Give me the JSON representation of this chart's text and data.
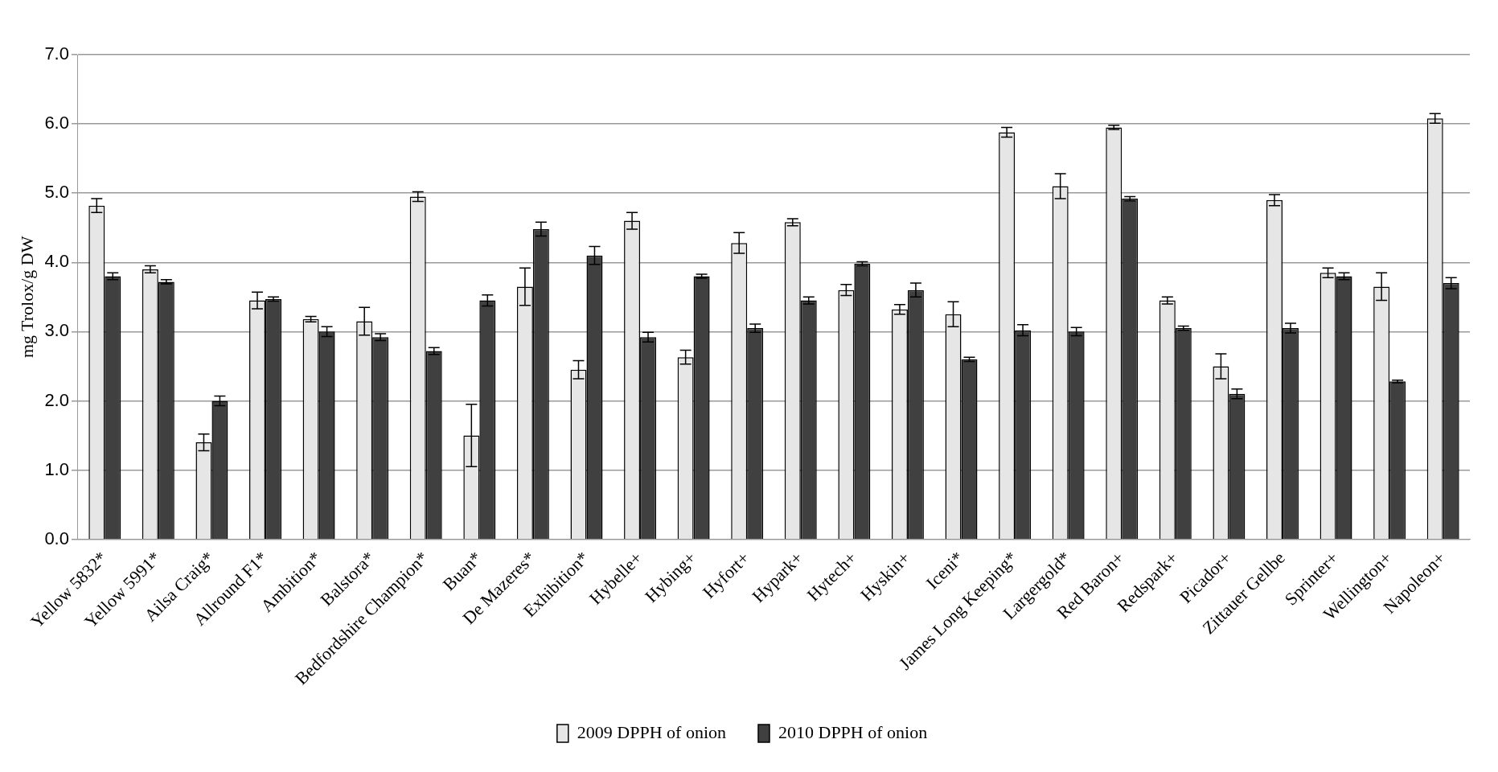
{
  "chart_data": {
    "type": "bar",
    "ylabel": "mg Trolox/g DW",
    "categories": [
      "Yellow 5832*",
      "Yellow 5991*",
      "Ailsa Craig*",
      "Allround F1*",
      "Ambition*",
      "Balstora*",
      "Bedfordshire Champion*",
      "Buan*",
      "De Mazeres*",
      "Exhibition*",
      "Hybelle+",
      "Hybing+",
      "Hyfort+",
      "Hypark+",
      "Hytech+",
      "Hyskin+",
      "Iceni*",
      "James Long Keeping*",
      "Largergold*",
      "Red Baron+",
      "Redspark+",
      "Picador+",
      "Zittauer Gellbe",
      "Sprinter+",
      "Wellington+",
      "Napoleon+"
    ],
    "series": [
      {
        "name": "2009 DPPH of onion",
        "color": "#e6e6e6",
        "values": [
          4.82,
          3.9,
          1.4,
          3.45,
          3.18,
          3.15,
          4.95,
          1.5,
          3.65,
          2.45,
          4.6,
          2.63,
          4.28,
          4.58,
          3.6,
          3.32,
          3.25,
          5.88,
          5.1,
          5.95,
          3.45,
          2.5,
          4.9,
          3.85,
          3.65,
          6.08
        ],
        "errors": [
          0.1,
          0.05,
          0.12,
          0.12,
          0.04,
          0.2,
          0.07,
          0.45,
          0.27,
          0.13,
          0.12,
          0.1,
          0.15,
          0.05,
          0.08,
          0.07,
          0.18,
          0.07,
          0.18,
          0.03,
          0.05,
          0.18,
          0.08,
          0.07,
          0.2,
          0.07
        ]
      },
      {
        "name": "2010 DPPH of onion",
        "color": "#404040",
        "values": [
          3.8,
          3.72,
          2.0,
          3.47,
          3.0,
          2.92,
          2.72,
          3.45,
          4.48,
          4.1,
          2.92,
          3.8,
          3.05,
          3.45,
          3.98,
          3.6,
          2.6,
          3.02,
          3.0,
          4.92,
          3.05,
          2.1,
          3.05,
          3.8,
          2.28,
          3.7
        ],
        "errors": [
          0.05,
          0.03,
          0.07,
          0.03,
          0.07,
          0.05,
          0.05,
          0.08,
          0.1,
          0.13,
          0.07,
          0.03,
          0.06,
          0.05,
          0.03,
          0.1,
          0.03,
          0.08,
          0.06,
          0.03,
          0.03,
          0.07,
          0.07,
          0.05,
          0.02,
          0.08
        ]
      }
    ],
    "ylim": [
      0,
      7
    ],
    "yticks": [
      {
        "value": 0,
        "label": "0.0"
      },
      {
        "value": 1,
        "label": "1.0"
      },
      {
        "value": 2,
        "label": "2.0"
      },
      {
        "value": 3,
        "label": "3.0"
      },
      {
        "value": 4,
        "label": "4.0"
      },
      {
        "value": 5,
        "label": "5.0"
      },
      {
        "value": 6,
        "label": "6.0"
      },
      {
        "value": 7,
        "label": "7.0"
      }
    ],
    "grid": "y",
    "legend": "bottom"
  }
}
